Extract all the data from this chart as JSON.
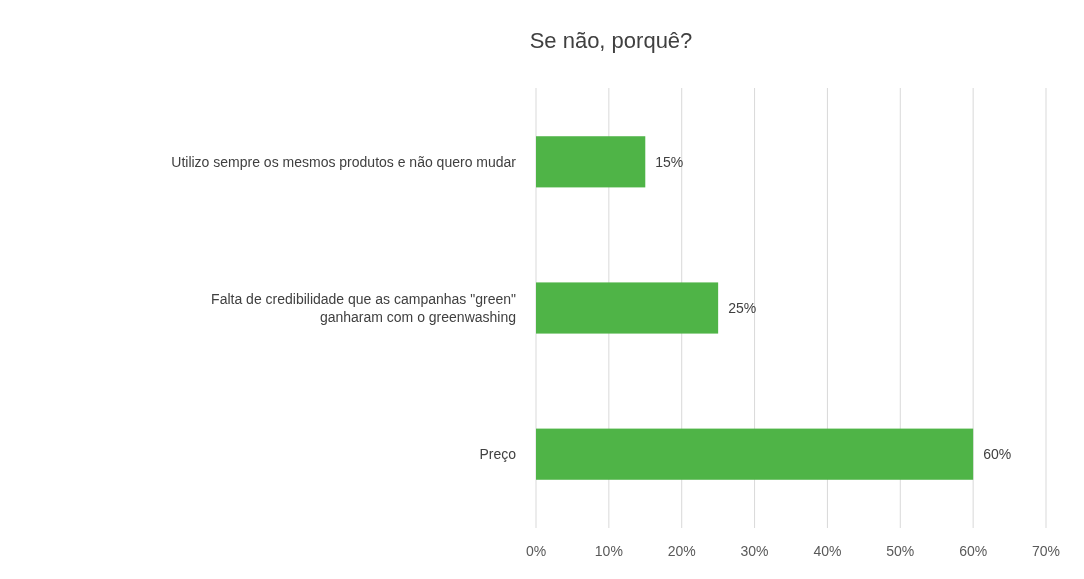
{
  "chart_data": {
    "type": "bar",
    "orientation": "horizontal",
    "title": "Se não, porquê?",
    "categories": [
      "Utilizo sempre os mesmos produtos e não quero mudar",
      "Falta de credibilidade que as campanhas \"green\" ganharam com o greenwashing",
      "Preço"
    ],
    "values": [
      15,
      25,
      60
    ],
    "color": "#4fb447",
    "value_labels": [
      "15%",
      "25%",
      "60%"
    ],
    "xlim": [
      0,
      70
    ],
    "xticks": [
      {
        "value": 0,
        "label": "0%"
      },
      {
        "value": 10,
        "label": "10%"
      },
      {
        "value": 20,
        "label": "20%"
      },
      {
        "value": 30,
        "label": "30%"
      },
      {
        "value": 40,
        "label": "40%"
      },
      {
        "value": 50,
        "label": "50%"
      },
      {
        "value": 60,
        "label": "60%"
      },
      {
        "value": 70,
        "label": "70%"
      }
    ],
    "grid": "x"
  }
}
